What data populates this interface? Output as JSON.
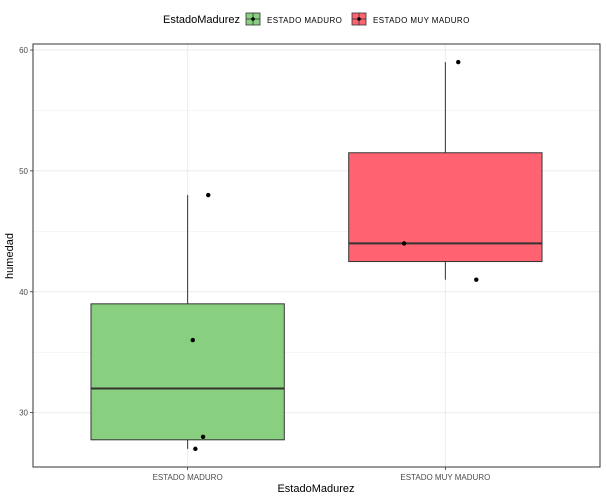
{
  "chart_data": {
    "type": "boxplot",
    "title": "",
    "xlabel": "EstadoMadurez",
    "ylabel": "humedad",
    "ylim": [
      25.5,
      60.5
    ],
    "yticks": [
      30,
      40,
      50,
      60
    ],
    "grid": true,
    "legend": {
      "title": "EstadoMadurez",
      "position": "top",
      "entries": [
        "ESTADO MADURO",
        "ESTADO MUY MADURO"
      ]
    },
    "categories": [
      "ESTADO MADURO",
      "ESTADO MUY MADURO"
    ],
    "boxes": [
      {
        "name": "ESTADO MADURO",
        "color": "#88CF7F",
        "min": 27,
        "q1": 27.75,
        "median": 32,
        "q3": 39,
        "max": 48,
        "points": [
          {
            "y": 48,
            "jitter": 0.08
          },
          {
            "y": 36,
            "jitter": 0.02
          },
          {
            "y": 28,
            "jitter": 0.06
          },
          {
            "y": 27,
            "jitter": 0.03
          }
        ]
      },
      {
        "name": "ESTADO MUY MADURO",
        "color": "#FF6371",
        "min": 41,
        "q1": 42.5,
        "median": 44,
        "q3": 51.5,
        "max": 59,
        "points": [
          {
            "y": 59,
            "jitter": 0.05
          },
          {
            "y": 44,
            "jitter": -0.16
          },
          {
            "y": 41,
            "jitter": 0.12
          }
        ]
      }
    ]
  }
}
